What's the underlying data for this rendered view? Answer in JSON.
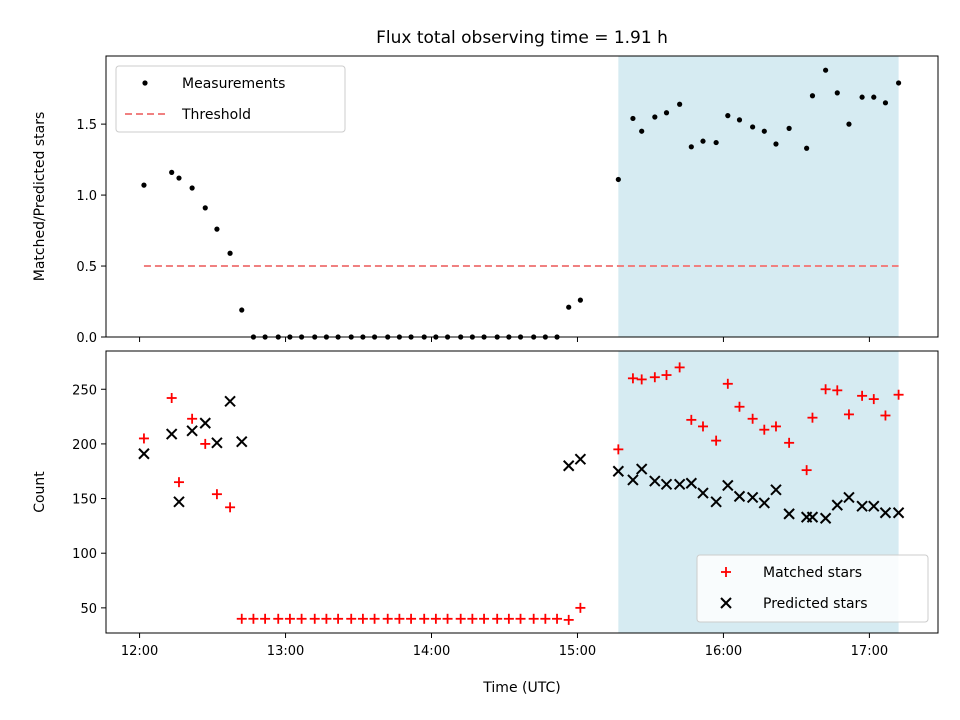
{
  "title": "Flux total observing time = 1.91 h",
  "colors": {
    "measurement": "#000000",
    "threshold": "#f08080",
    "matched": "#ff0000",
    "predicted": "#000000",
    "highlight": "#add8e6"
  },
  "chart_data": [
    {
      "type": "scatter",
      "ylabel": "Matched/Predicted stars",
      "xlim": [
        11.77,
        17.47
      ],
      "ylim": [
        0,
        1.98
      ],
      "yticks": [
        0.0,
        0.5,
        1.0,
        1.5
      ],
      "ytick_labels": [
        "0.0",
        "0.5",
        "1.0",
        "1.5"
      ],
      "xticks": [
        12,
        13,
        14,
        15,
        16,
        17
      ],
      "highlight_span": [
        15.28,
        17.2
      ],
      "legend_position": "upper-left",
      "series": [
        {
          "name": "Measurements",
          "marker": "dot",
          "points": [
            [
              12.03,
              1.07
            ],
            [
              12.22,
              1.16
            ],
            [
              12.27,
              1.12
            ],
            [
              12.36,
              1.05
            ],
            [
              12.45,
              0.91
            ],
            [
              12.53,
              0.76
            ],
            [
              12.62,
              0.59
            ],
            [
              12.7,
              0.19
            ],
            [
              12.78,
              0
            ],
            [
              12.86,
              0
            ],
            [
              12.95,
              0
            ],
            [
              13.03,
              0
            ],
            [
              13.11,
              0
            ],
            [
              13.2,
              0
            ],
            [
              13.28,
              0
            ],
            [
              13.36,
              0
            ],
            [
              13.45,
              0
            ],
            [
              13.53,
              0
            ],
            [
              13.61,
              0
            ],
            [
              13.7,
              0
            ],
            [
              13.78,
              0
            ],
            [
              13.86,
              0
            ],
            [
              13.95,
              0
            ],
            [
              14.03,
              0
            ],
            [
              14.11,
              0
            ],
            [
              14.2,
              0
            ],
            [
              14.28,
              0
            ],
            [
              14.36,
              0
            ],
            [
              14.45,
              0
            ],
            [
              14.53,
              0
            ],
            [
              14.61,
              0
            ],
            [
              14.7,
              0
            ],
            [
              14.78,
              0
            ],
            [
              14.86,
              0
            ],
            [
              14.94,
              0.21
            ],
            [
              15.02,
              0.26
            ],
            [
              15.28,
              1.11
            ],
            [
              15.38,
              1.54
            ],
            [
              15.44,
              1.45
            ],
            [
              15.53,
              1.55
            ],
            [
              15.61,
              1.58
            ],
            [
              15.7,
              1.64
            ],
            [
              15.78,
              1.34
            ],
            [
              15.86,
              1.38
            ],
            [
              15.95,
              1.37
            ],
            [
              16.03,
              1.56
            ],
            [
              16.11,
              1.53
            ],
            [
              16.2,
              1.48
            ],
            [
              16.28,
              1.45
            ],
            [
              16.36,
              1.36
            ],
            [
              16.45,
              1.47
            ],
            [
              16.57,
              1.33
            ],
            [
              16.61,
              1.7
            ],
            [
              16.7,
              1.88
            ],
            [
              16.78,
              1.72
            ],
            [
              16.86,
              1.5
            ],
            [
              16.95,
              1.69
            ],
            [
              17.03,
              1.69
            ],
            [
              17.11,
              1.65
            ],
            [
              17.2,
              1.79
            ]
          ]
        },
        {
          "name": "Threshold",
          "marker": "dashed-line",
          "x": [
            12.03,
            17.2
          ],
          "y": 0.5
        }
      ]
    },
    {
      "type": "scatter",
      "ylabel": "Count",
      "xlabel": "Time (UTC)",
      "xlim": [
        11.77,
        17.47
      ],
      "ylim": [
        27,
        285
      ],
      "yticks": [
        50,
        100,
        150,
        200,
        250
      ],
      "ytick_labels": [
        "50",
        "100",
        "150",
        "200",
        "250"
      ],
      "xticks": [
        12,
        13,
        14,
        15,
        16,
        17
      ],
      "xtick_labels": [
        "12:00",
        "13:00",
        "14:00",
        "15:00",
        "16:00",
        "17:00"
      ],
      "highlight_span": [
        15.28,
        17.2
      ],
      "legend_position": "lower-right",
      "series": [
        {
          "name": "Matched stars",
          "marker": "plus",
          "points": [
            [
              12.03,
              205
            ],
            [
              12.22,
              242
            ],
            [
              12.27,
              165
            ],
            [
              12.36,
              223
            ],
            [
              12.45,
              200
            ],
            [
              12.53,
              154
            ],
            [
              12.62,
              142
            ],
            [
              12.7,
              40
            ],
            [
              12.78,
              40
            ],
            [
              12.86,
              40
            ],
            [
              12.95,
              40
            ],
            [
              13.03,
              40
            ],
            [
              13.11,
              40
            ],
            [
              13.2,
              40
            ],
            [
              13.28,
              40
            ],
            [
              13.36,
              40
            ],
            [
              13.45,
              40
            ],
            [
              13.53,
              40
            ],
            [
              13.61,
              40
            ],
            [
              13.7,
              40
            ],
            [
              13.78,
              40
            ],
            [
              13.86,
              40
            ],
            [
              13.95,
              40
            ],
            [
              14.03,
              40
            ],
            [
              14.11,
              40
            ],
            [
              14.2,
              40
            ],
            [
              14.28,
              40
            ],
            [
              14.36,
              40
            ],
            [
              14.45,
              40
            ],
            [
              14.53,
              40
            ],
            [
              14.61,
              40
            ],
            [
              14.7,
              40
            ],
            [
              14.78,
              40
            ],
            [
              14.86,
              40
            ],
            [
              14.94,
              39
            ],
            [
              15.02,
              50
            ],
            [
              15.28,
              195
            ],
            [
              15.38,
              260
            ],
            [
              15.44,
              259
            ],
            [
              15.53,
              261
            ],
            [
              15.61,
              263
            ],
            [
              15.7,
              270
            ],
            [
              15.78,
              222
            ],
            [
              15.86,
              216
            ],
            [
              15.95,
              203
            ],
            [
              16.03,
              255
            ],
            [
              16.11,
              234
            ],
            [
              16.2,
              223
            ],
            [
              16.28,
              213
            ],
            [
              16.36,
              216
            ],
            [
              16.45,
              201
            ],
            [
              16.57,
              176
            ],
            [
              16.61,
              224
            ],
            [
              16.7,
              250
            ],
            [
              16.78,
              249
            ],
            [
              16.86,
              227
            ],
            [
              16.95,
              244
            ],
            [
              17.03,
              241
            ],
            [
              17.11,
              226
            ],
            [
              17.2,
              245
            ]
          ]
        },
        {
          "name": "Predicted stars",
          "marker": "x",
          "points": [
            [
              12.03,
              191
            ],
            [
              12.22,
              209
            ],
            [
              12.27,
              147
            ],
            [
              12.36,
              212
            ],
            [
              12.45,
              219
            ],
            [
              12.53,
              201
            ],
            [
              12.62,
              239
            ],
            [
              12.7,
              202
            ],
            [
              14.94,
              180
            ],
            [
              15.02,
              186
            ],
            [
              15.28,
              175
            ],
            [
              15.38,
              167
            ],
            [
              15.44,
              177
            ],
            [
              15.53,
              166
            ],
            [
              15.61,
              163
            ],
            [
              15.7,
              163
            ],
            [
              15.78,
              164
            ],
            [
              15.86,
              155
            ],
            [
              15.95,
              147
            ],
            [
              16.03,
              162
            ],
            [
              16.11,
              152
            ],
            [
              16.2,
              151
            ],
            [
              16.28,
              146
            ],
            [
              16.36,
              158
            ],
            [
              16.45,
              136
            ],
            [
              16.57,
              133
            ],
            [
              16.61,
              133
            ],
            [
              16.7,
              132
            ],
            [
              16.78,
              144
            ],
            [
              16.86,
              151
            ],
            [
              16.95,
              143
            ],
            [
              17.03,
              143
            ],
            [
              17.11,
              137
            ],
            [
              17.2,
              137
            ]
          ]
        }
      ]
    }
  ]
}
